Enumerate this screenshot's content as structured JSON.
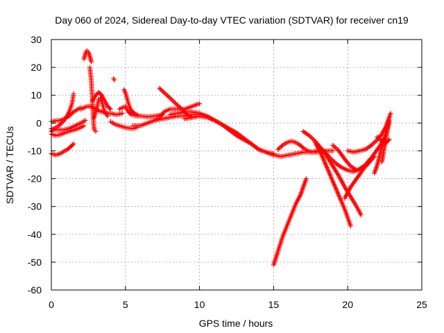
{
  "chart_data": {
    "type": "scatter",
    "title": "Day 060 of 2024, Sidereal Day-to-day VTEC variation (SDTVAR) for receiver cn19",
    "xlabel": "GPS time / hours",
    "ylabel": "SDTVAR / TECUs",
    "xlim": [
      0,
      25
    ],
    "ylim": [
      -60,
      30
    ],
    "xticks": [
      "0",
      "5",
      "10",
      "15",
      "20",
      "25"
    ],
    "yticks": [
      "30",
      "20",
      "10",
      "0",
      "-10",
      "-20",
      "-30",
      "-40",
      "-50",
      "-60"
    ],
    "grid": true,
    "marker": "plus",
    "color": "#ff0000",
    "series": [
      {
        "name": "trace-1",
        "x": [
          0.0,
          0.3,
          0.6,
          0.9,
          1.2,
          1.5,
          1.8,
          2.0
        ],
        "y": [
          0.5,
          0.8,
          1.0,
          1.5,
          2.5,
          4.0,
          5.0,
          5.5
        ]
      },
      {
        "name": "trace-2",
        "x": [
          0.0,
          0.2,
          0.5,
          0.8,
          1.0,
          1.2,
          1.4,
          1.5
        ],
        "y": [
          -3.0,
          -2.0,
          -1.0,
          0.5,
          2.0,
          4.0,
          7.0,
          10.5
        ]
      },
      {
        "name": "trace-3",
        "x": [
          0.0,
          0.3,
          0.6,
          0.9,
          1.1,
          1.3,
          1.5
        ],
        "y": [
          -11.0,
          -11.5,
          -11.0,
          -10.0,
          -9.5,
          -8.5,
          -7.5
        ]
      },
      {
        "name": "trace-4",
        "x": [
          0.0,
          0.3,
          0.6,
          0.9,
          1.2,
          1.5,
          1.8,
          2.0,
          2.2
        ],
        "y": [
          -4.0,
          -4.5,
          -4.2,
          -3.5,
          -3.0,
          -2.5,
          -2.0,
          -1.5,
          -1.0
        ]
      },
      {
        "name": "trace-5",
        "x": [
          0.0,
          0.4,
          0.8,
          1.2,
          1.6,
          2.0,
          2.3
        ],
        "y": [
          -2.0,
          -2.5,
          -2.5,
          -2.0,
          -1.0,
          0.0,
          1.0
        ]
      },
      {
        "name": "trace-6",
        "x": [
          2.0,
          2.2,
          2.4,
          2.6,
          2.8,
          3.0,
          3.2,
          3.4,
          3.6,
          3.8,
          4.0,
          4.2,
          4.4,
          4.6,
          4.8
        ],
        "y": [
          5.0,
          5.5,
          6.0,
          6.0,
          5.5,
          5.0,
          4.5,
          4.0,
          3.8,
          3.5,
          3.5,
          3.2,
          3.0,
          3.2,
          3.5
        ]
      },
      {
        "name": "trace-7",
        "x": [
          2.2,
          2.3,
          2.4,
          2.5,
          2.6,
          2.7
        ],
        "y": [
          23.0,
          25.0,
          26.0,
          25.5,
          24.0,
          22.0
        ]
      },
      {
        "name": "trace-8",
        "x": [
          2.6,
          2.7,
          2.75,
          2.8,
          2.85,
          2.9,
          3.0
        ],
        "y": [
          20.0,
          15.0,
          10.0,
          5.0,
          0.0,
          -2.5,
          -3.0
        ]
      },
      {
        "name": "trace-9",
        "x": [
          2.8,
          3.0,
          3.2,
          3.4,
          3.6,
          3.8,
          4.0
        ],
        "y": [
          8.0,
          10.0,
          11.0,
          10.0,
          8.0,
          6.0,
          5.0
        ]
      },
      {
        "name": "trace-10",
        "x": [
          2.9,
          3.0,
          3.1,
          3.2,
          3.3,
          3.4,
          3.5,
          3.6,
          3.8
        ],
        "y": [
          2.0,
          4.0,
          6.0,
          8.5,
          9.0,
          8.0,
          6.0,
          4.0,
          2.5
        ]
      },
      {
        "name": "trace-11",
        "x": [
          4.2,
          4.25
        ],
        "y": [
          16.0,
          15.5
        ]
      },
      {
        "name": "trace-12",
        "x": [
          4.0,
          4.3,
          4.6,
          4.9,
          5.2,
          5.5,
          5.8
        ],
        "y": [
          0.5,
          -0.5,
          -1.0,
          -1.5,
          -1.8,
          -2.0,
          -1.5
        ]
      },
      {
        "name": "trace-13",
        "x": [
          4.6,
          4.8,
          5.0,
          5.2,
          5.4,
          5.6,
          5.8,
          6.1,
          6.5,
          7.0,
          7.5
        ],
        "y": [
          5.0,
          5.5,
          6.0,
          4.0,
          3.0,
          2.8,
          2.5,
          2.5,
          2.2,
          2.5,
          3.0
        ]
      },
      {
        "name": "trace-14",
        "x": [
          4.9,
          5.0,
          5.1,
          5.2,
          5.3,
          5.4,
          5.6,
          5.8
        ],
        "y": [
          12.0,
          11.0,
          9.0,
          7.0,
          5.5,
          4.5,
          3.5,
          3.0
        ]
      },
      {
        "name": "trace-15",
        "x": [
          5.5,
          6.0,
          6.5,
          7.0,
          7.5,
          8.0,
          8.5,
          9.0,
          9.5,
          10.0
        ],
        "y": [
          -1.0,
          -1.0,
          0.0,
          1.0,
          1.5,
          2.0,
          2.5,
          2.5,
          3.0,
          3.0
        ]
      },
      {
        "name": "trace-16",
        "x": [
          7.0,
          7.3,
          7.6,
          8.0,
          8.5,
          9.0,
          9.5,
          10.0
        ],
        "y": [
          1.0,
          2.0,
          4.0,
          5.0,
          5.0,
          5.0,
          6.0,
          7.0
        ]
      },
      {
        "name": "trace-17",
        "x": [
          7.3,
          7.6,
          8.0,
          8.4,
          8.8,
          9.2,
          9.5
        ],
        "y": [
          12.5,
          11.0,
          9.0,
          7.0,
          5.0,
          3.0,
          2.0
        ]
      },
      {
        "name": "trace-18",
        "x": [
          8.0,
          8.5,
          9.0,
          9.5,
          10.0,
          10.5,
          11.0,
          11.5,
          12.0,
          12.5,
          13.0,
          13.5,
          14.0,
          14.5,
          15.0
        ],
        "y": [
          3.0,
          3.5,
          4.0,
          4.0,
          3.5,
          2.5,
          1.0,
          -0.5,
          -2.0,
          -3.5,
          -5.5,
          -7.5,
          -9.5,
          -10.5,
          -11.0
        ]
      },
      {
        "name": "trace-19",
        "x": [
          9.0,
          9.5,
          10.0,
          10.5,
          11.0,
          11.5,
          12.0,
          12.5,
          13.0,
          13.5,
          14.0,
          14.5,
          15.0,
          15.5
        ],
        "y": [
          1.5,
          2.0,
          2.5,
          2.0,
          1.0,
          -0.5,
          -2.5,
          -4.5,
          -6.0,
          -7.5,
          -9.5,
          -10.5,
          -11.5,
          -12.0
        ]
      },
      {
        "name": "trace-20",
        "x": [
          15.0,
          15.3,
          15.6,
          15.9,
          16.2,
          16.5,
          16.8,
          17.0,
          17.2
        ],
        "y": [
          -51.0,
          -46.0,
          -41.0,
          -37.0,
          -33.0,
          -29.0,
          -26.0,
          -23.0,
          -20.0
        ]
      },
      {
        "name": "trace-21",
        "x": [
          15.3,
          15.6,
          15.9,
          16.2,
          16.5,
          16.8,
          17.0,
          17.3,
          17.6,
          18.0
        ],
        "y": [
          -9.5,
          -8.0,
          -7.0,
          -6.5,
          -7.0,
          -8.0,
          -9.0,
          -10.0,
          -10.5,
          -10.5
        ]
      },
      {
        "name": "trace-22",
        "x": [
          15.5,
          16.0,
          16.5,
          17.0,
          17.5,
          18.0,
          18.5,
          19.0
        ],
        "y": [
          -12.0,
          -11.5,
          -11.0,
          -10.5,
          -10.5,
          -10.0,
          -10.0,
          -10.0
        ]
      },
      {
        "name": "trace-23",
        "x": [
          17.0,
          17.4,
          17.8,
          18.2,
          18.6,
          19.0,
          19.4,
          19.8,
          20.2,
          20.6,
          20.9
        ],
        "y": [
          -3.0,
          -4.5,
          -6.5,
          -9.0,
          -12.0,
          -15.5,
          -19.0,
          -23.0,
          -26.5,
          -30.0,
          -33.0
        ]
      },
      {
        "name": "trace-24",
        "x": [
          17.8,
          18.2,
          18.6,
          19.0,
          19.4,
          19.8,
          20.2
        ],
        "y": [
          -7.0,
          -11.0,
          -16.0,
          -21.0,
          -26.0,
          -31.0,
          -37.0
        ]
      },
      {
        "name": "trace-25",
        "x": [
          18.4,
          18.8,
          19.2,
          19.6,
          20.0,
          20.4,
          20.8,
          21.2,
          21.5
        ],
        "y": [
          -10.0,
          -12.5,
          -14.5,
          -16.0,
          -17.0,
          -17.5,
          -16.5,
          -15.0,
          -13.0
        ]
      },
      {
        "name": "trace-26",
        "x": [
          19.0,
          19.4,
          19.8,
          20.2,
          20.6,
          21.0,
          21.4,
          21.8
        ],
        "y": [
          -8.0,
          -10.0,
          -13.0,
          -15.5,
          -17.0,
          -16.5,
          -14.5,
          -12.0
        ]
      },
      {
        "name": "trace-27",
        "x": [
          19.8,
          20.2,
          20.6,
          21.0,
          21.4,
          21.8,
          22.2,
          22.6,
          22.8
        ],
        "y": [
          -27.0,
          -23.0,
          -20.0,
          -17.0,
          -14.0,
          -11.0,
          -8.0,
          -4.0,
          0.0
        ]
      },
      {
        "name": "trace-28",
        "x": [
          20.0,
          20.4,
          20.8,
          21.2,
          21.6,
          22.0,
          22.3,
          22.6,
          22.9
        ],
        "y": [
          -10.0,
          -10.5,
          -10.0,
          -9.5,
          -8.0,
          -6.0,
          -4.0,
          -1.0,
          3.5
        ]
      },
      {
        "name": "trace-29",
        "x": [
          21.8,
          22.0,
          22.2,
          22.4,
          22.6,
          22.8
        ],
        "y": [
          -18.0,
          -15.0,
          -11.0,
          -7.0,
          -3.0,
          2.0
        ]
      },
      {
        "name": "trace-30",
        "x": [
          22.0,
          22.2,
          22.4,
          22.6,
          22.8
        ],
        "y": [
          -5.0,
          -6.0,
          -6.5,
          -7.0,
          -6.0
        ]
      },
      {
        "name": "trace-31",
        "x": [
          22.3,
          22.4,
          22.5,
          22.6,
          22.7,
          22.8
        ],
        "y": [
          -14.0,
          -11.0,
          -8.0,
          -5.0,
          -2.0,
          1.0
        ]
      }
    ]
  }
}
